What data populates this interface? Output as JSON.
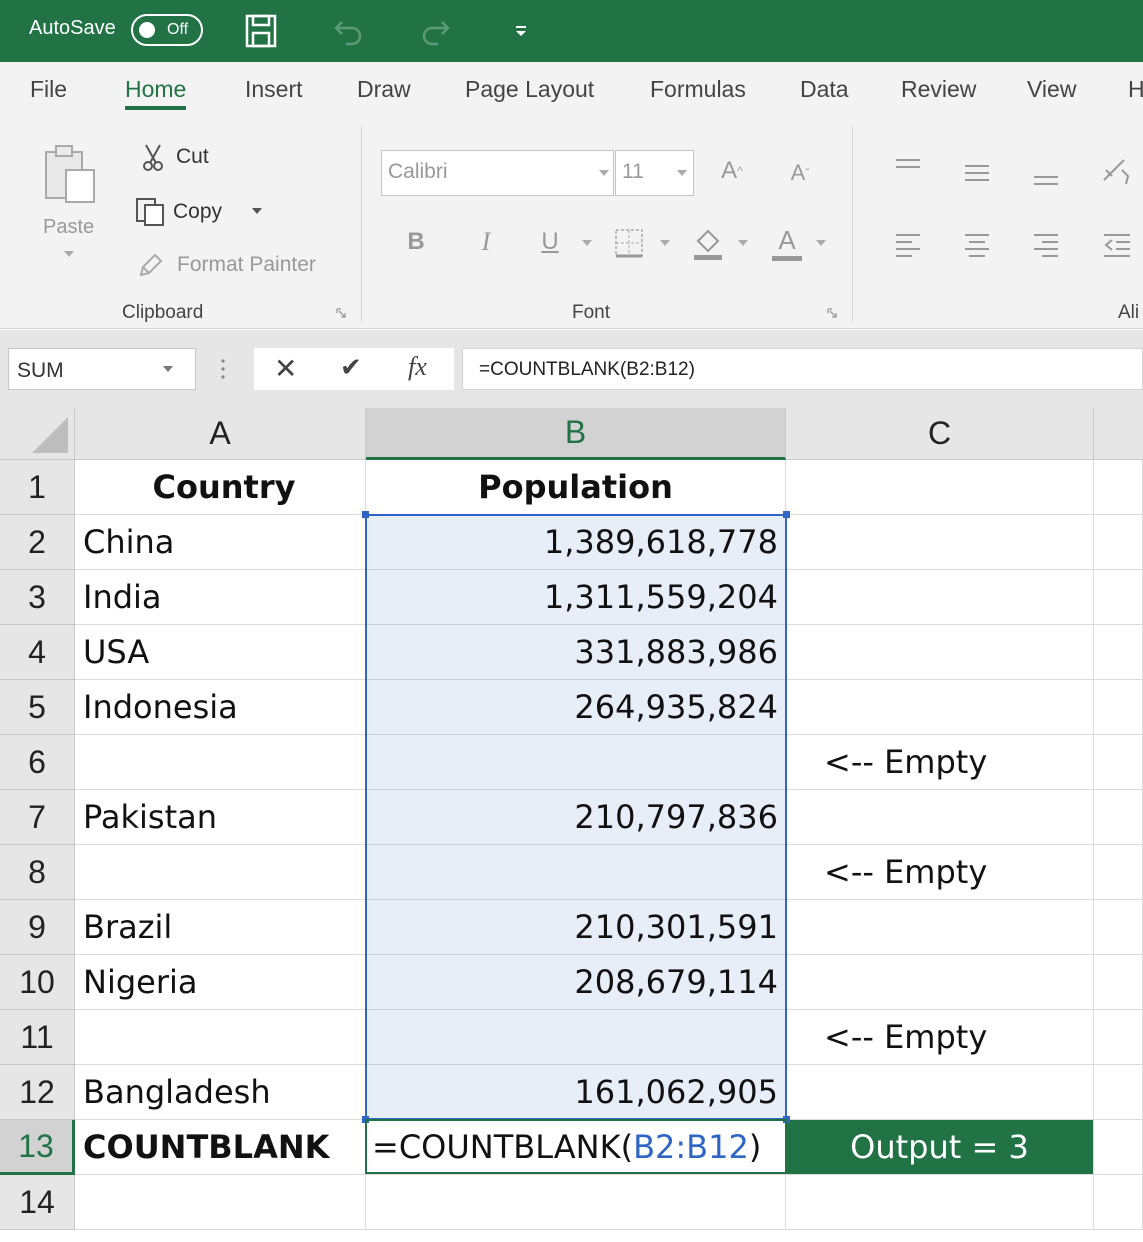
{
  "titlebar": {
    "autosave_label": "AutoSave",
    "toggle_state": "Off",
    "icons": [
      "save-icon",
      "undo-icon",
      "redo-icon",
      "customize-qat-icon"
    ]
  },
  "menu": {
    "tabs": [
      "File",
      "Home",
      "Insert",
      "Draw",
      "Page Layout",
      "Formulas",
      "Data",
      "Review",
      "View",
      "H"
    ],
    "active": "Home"
  },
  "ribbon": {
    "clipboard": {
      "paste": "Paste",
      "cut": "Cut",
      "copy": "Copy",
      "format_painter": "Format Painter",
      "label": "Clipboard"
    },
    "font": {
      "font_name": "Calibri",
      "font_size": "11",
      "grow": "A",
      "shrink": "A",
      "bold": "B",
      "italic": "I",
      "underline": "U",
      "font_color": "A",
      "label": "Font"
    },
    "alignment": {
      "label": "Ali"
    }
  },
  "formula_bar": {
    "name_box": "SUM",
    "cancel": "✕",
    "enter": "✔",
    "fx": "fx",
    "formula": "=COUNTBLANK(B2:B12)"
  },
  "sheet": {
    "columns": [
      "A",
      "B",
      "C"
    ],
    "rows": [
      {
        "n": "1",
        "a": "Country",
        "b": "Population",
        "c": ""
      },
      {
        "n": "2",
        "a": "China",
        "b": "1,389,618,778",
        "c": ""
      },
      {
        "n": "3",
        "a": "India",
        "b": "1,311,559,204",
        "c": ""
      },
      {
        "n": "4",
        "a": "USA",
        "b": "331,883,986",
        "c": ""
      },
      {
        "n": "5",
        "a": "Indonesia",
        "b": "264,935,824",
        "c": ""
      },
      {
        "n": "6",
        "a": "",
        "b": "",
        "c": "<-- Empty"
      },
      {
        "n": "7",
        "a": "Pakistan",
        "b": "210,797,836",
        "c": ""
      },
      {
        "n": "8",
        "a": "",
        "b": "",
        "c": "<-- Empty"
      },
      {
        "n": "9",
        "a": "Brazil",
        "b": "210,301,591",
        "c": ""
      },
      {
        "n": "10",
        "a": "Nigeria",
        "b": "208,679,114",
        "c": ""
      },
      {
        "n": "11",
        "a": "",
        "b": "",
        "c": "<-- Empty"
      },
      {
        "n": "12",
        "a": "Bangladesh",
        "b": "161,062,905",
        "c": ""
      },
      {
        "n": "13",
        "a": "COUNTBLANK",
        "b": "",
        "c": "Output = 3"
      },
      {
        "n": "14",
        "a": "",
        "b": "",
        "c": ""
      }
    ],
    "formula_cell": {
      "prefix": "=COUNTBLANK(",
      "ref": "B2:B12",
      "suffix": ")"
    },
    "colors": {
      "accent": "#217346",
      "range_border": "#2f66c5",
      "range_fill": "#e8eef8"
    }
  }
}
